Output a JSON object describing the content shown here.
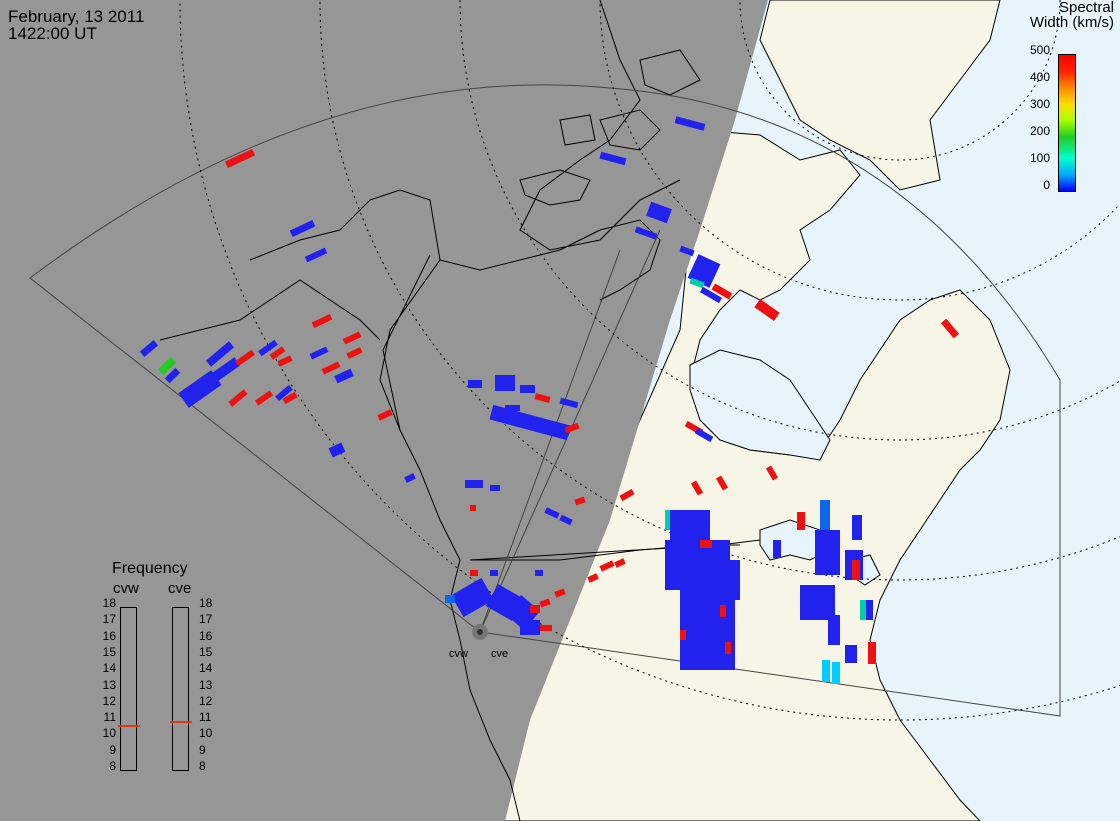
{
  "header": {
    "date": "February, 13 2011",
    "time": "1422:00 UT"
  },
  "colorbar": {
    "title_line1": "Spectral",
    "title_line2": "Width (km/s)",
    "ticks": [
      "500",
      "400",
      "300",
      "200",
      "100",
      "0"
    ],
    "colors": [
      "#0000ff",
      "#00ccff",
      "#22cc22",
      "#ffdd00",
      "#ff8800",
      "#ff0000"
    ]
  },
  "frequency": {
    "title": "Frequency",
    "radars": [
      "cvw",
      "cve"
    ],
    "scale": [
      "18",
      "17",
      "16",
      "15",
      "14",
      "13",
      "12",
      "11",
      "10",
      "9",
      "8"
    ],
    "cvw_value": 10.6,
    "cve_value": 10.8
  },
  "radars": {
    "west_label": "cvw",
    "east_label": "cve"
  },
  "map_colors": {
    "night": "#969696",
    "day_land": "#f7f5e6",
    "ocean": "#e8f4fc",
    "low_width": "#2222ee",
    "high_width": "#ee1111"
  }
}
